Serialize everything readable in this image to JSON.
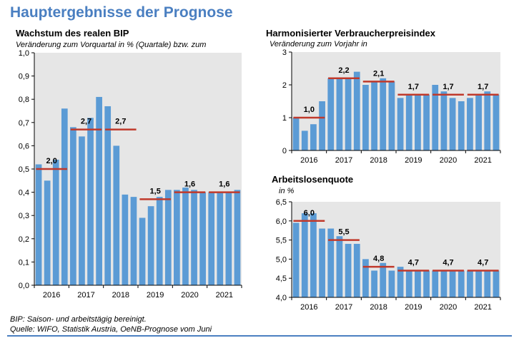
{
  "page_title": "Hauptergebnisse der Prognose",
  "footnote": "BIP: Saison- und arbeitstägig bereinigt.",
  "source": "Quelle: WIFO, Statistik Austria, OeNB-Prognose vom Juni",
  "colors": {
    "bar": "#5b9bd5",
    "avg_line": "#c0392b",
    "title": "#4a7fc1",
    "plot_bg": "#e6e6e6"
  },
  "chart_data": [
    {
      "type": "bar",
      "title": "Wachstum des realen BIP",
      "subtitle": "Veränderung zum Vorquartal in % (Quartale) bzw. zum",
      "ylim": [
        0,
        1.0
      ],
      "yticks": [
        "0,0",
        "0,1",
        "0,2",
        "0,3",
        "0,4",
        "0,5",
        "0,6",
        "0,7",
        "0,8",
        "0,9",
        "1,0"
      ],
      "tick_values": [
        0,
        0.1,
        0.2,
        0.3,
        0.4,
        0.5,
        0.6,
        0.7,
        0.8,
        0.9,
        1.0
      ],
      "x_labels": [
        "2016",
        "2017",
        "2018",
        "2019",
        "2020",
        "2021"
      ],
      "values": [
        0.52,
        0.45,
        0.54,
        0.76,
        0.68,
        0.64,
        0.72,
        0.81,
        0.77,
        0.6,
        0.39,
        0.38,
        0.29,
        0.34,
        0.38,
        0.41,
        0.41,
        0.42,
        0.41,
        0.4,
        0.4,
        0.4,
        0.4,
        0.41
      ],
      "annual_values": [
        0.5,
        0.67,
        0.67,
        0.37,
        0.4,
        0.4
      ],
      "annual_labels": [
        "2,0",
        "2,7",
        "2,7",
        "1,5",
        "1,6",
        "1,6"
      ],
      "grid": false
    },
    {
      "type": "bar",
      "title": "Harmonisierter Verbraucherpreisindex",
      "subtitle": "Veränderung zum Vorjahr in",
      "ylim": [
        0,
        3
      ],
      "yticks": [
        "0",
        "1",
        "2",
        "3"
      ],
      "tick_values": [
        0,
        1,
        2,
        3
      ],
      "x_labels": [
        "2016",
        "2017",
        "2018",
        "2019",
        "2020",
        "2021"
      ],
      "values": [
        1.0,
        0.6,
        0.8,
        1.5,
        2.2,
        2.2,
        2.2,
        2.4,
        2.0,
        2.1,
        2.2,
        2.1,
        1.6,
        1.7,
        1.7,
        1.7,
        2.0,
        1.8,
        1.6,
        1.5,
        1.6,
        1.7,
        1.8,
        1.7
      ],
      "annual_values": [
        1.0,
        2.2,
        2.1,
        1.7,
        1.7,
        1.7
      ],
      "annual_labels": [
        "1,0",
        "2,2",
        "2,1",
        "1,7",
        "1,7",
        "1,7"
      ],
      "grid": false
    },
    {
      "type": "bar",
      "title": "Arbeitslosenquote",
      "subtitle": "in %",
      "ylim": [
        4.0,
        6.5
      ],
      "yticks": [
        "4,0",
        "4,5",
        "5,0",
        "5,5",
        "6,0",
        "6,5"
      ],
      "tick_values": [
        4.0,
        4.5,
        5.0,
        5.5,
        6.0,
        6.5
      ],
      "x_labels": [
        "2016",
        "2017",
        "2018",
        "2019",
        "2020",
        "2021"
      ],
      "values": [
        5.95,
        6.2,
        6.2,
        5.8,
        5.8,
        5.6,
        5.4,
        5.4,
        5.0,
        4.7,
        4.9,
        4.7,
        4.8,
        4.7,
        4.7,
        4.7,
        4.7,
        4.7,
        4.7,
        4.7,
        4.7,
        4.7,
        4.7,
        4.7
      ],
      "annual_values": [
        6.0,
        5.5,
        4.8,
        4.7,
        4.7,
        4.7
      ],
      "annual_labels": [
        "6,0",
        "5,5",
        "4,8",
        "4,7",
        "4,7",
        "4,7"
      ],
      "grid": false
    }
  ]
}
